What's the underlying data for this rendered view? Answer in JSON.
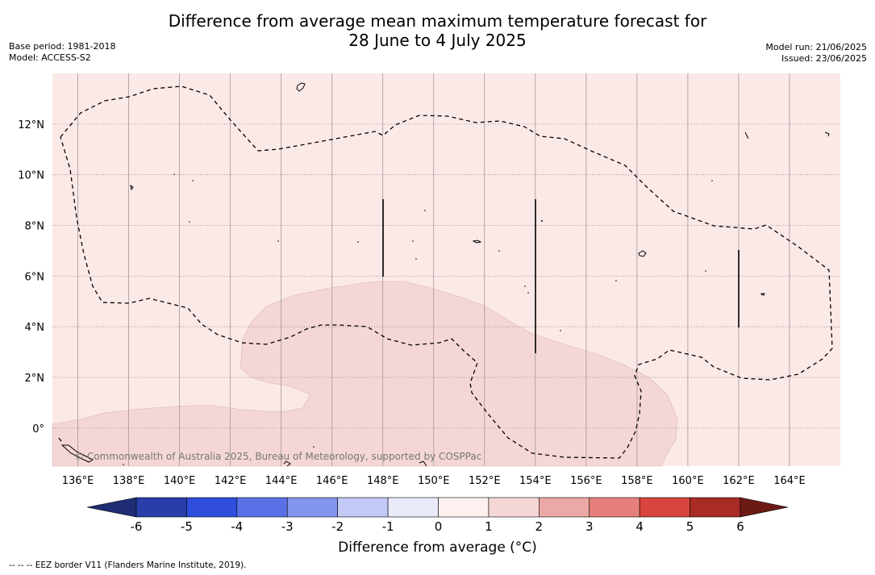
{
  "title_line1": "Difference from average mean maximum temperature forecast for",
  "title_line2": "28 June to 4 July 2025",
  "meta_left": [
    "Base period: 1981-2018",
    "Model: ACCESS-S2"
  ],
  "meta_right": [
    "Model run: 21/06/2025",
    "Issued: 23/06/2025"
  ],
  "copyright": "© Commonwealth of Australia 2025, Bureau of Meteorology, supported by COSPPac",
  "colorbar": {
    "label": "Difference from average (°C)",
    "ticks": [
      "-6",
      "-5",
      "-4",
      "-3",
      "-2",
      "-1",
      "0",
      "1",
      "2",
      "3",
      "4",
      "5",
      "6"
    ],
    "colors": [
      "#293ea8",
      "#2f4edd",
      "#5a70e6",
      "#8394ec",
      "#c2c9f5",
      "#e8eaf9",
      "#fdf0ef",
      "#f5d6d6",
      "#eba8a4",
      "#e5807a",
      "#d8453c",
      "#a82b26"
    ],
    "under_color": "#1f2d75",
    "over_color": "#6c1a16"
  },
  "footnote": "--  --  -- EEZ border V11 (Flanders Marine Institute, 2019).",
  "chart_data": {
    "type": "map",
    "lon_range": [
      135,
      166
    ],
    "lat_range": [
      -1.5,
      14
    ],
    "x_ticks": [
      "136°E",
      "138°E",
      "140°E",
      "142°E",
      "144°E",
      "146°E",
      "148°E",
      "150°E",
      "152°E",
      "154°E",
      "156°E",
      "158°E",
      "160°E",
      "162°E",
      "164°E"
    ],
    "y_ticks": [
      "12°N",
      "10°N",
      "8°N",
      "6°N",
      "4°N",
      "2°N",
      "0°"
    ],
    "background_class": "0 to 1 °C",
    "background_color": "#fbe9e8",
    "region_class": "1 to 2 °C",
    "region_color": "#f5d6d6"
  }
}
